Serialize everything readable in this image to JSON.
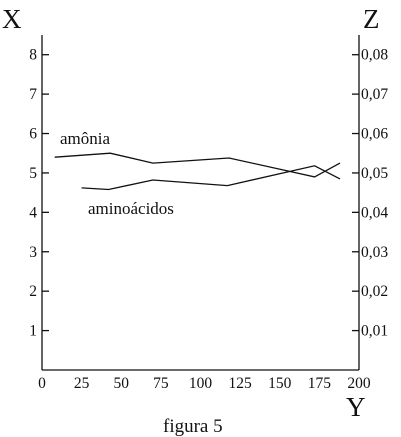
{
  "chart_data": {
    "type": "line",
    "caption": "figura 5",
    "x_axis": {
      "label": "Y",
      "range": [
        0,
        200
      ],
      "ticks": [
        0,
        25,
        50,
        75,
        100,
        125,
        150,
        175,
        200
      ],
      "tick_labels": [
        "0",
        "25",
        "50",
        "75",
        "100",
        "125",
        "150",
        "175",
        "200"
      ]
    },
    "y_left_axis": {
      "label": "X",
      "range": [
        0,
        8.5
      ],
      "ticks": [
        1,
        2,
        3,
        4,
        5,
        6,
        7,
        8
      ],
      "tick_labels": [
        "1",
        "2",
        "3",
        "4",
        "5",
        "6",
        "7",
        "8"
      ]
    },
    "y_right_axis": {
      "label": "Z",
      "range": [
        0,
        0.085
      ],
      "ticks": [
        0.01,
        0.02,
        0.03,
        0.04,
        0.05,
        0.06,
        0.07,
        0.08
      ],
      "tick_labels": [
        "0,01",
        "0,02",
        "0,03",
        "0,04",
        "0,05",
        "0,06",
        "0,07",
        "0,08"
      ]
    },
    "series": [
      {
        "name": "amônia",
        "axis": "left",
        "x": [
          8,
          43,
          70,
          118,
          172,
          188
        ],
        "y": [
          5.4,
          5.5,
          5.25,
          5.38,
          4.9,
          5.25
        ]
      },
      {
        "name": "aminoácidos",
        "axis": "left",
        "x": [
          25,
          42,
          70,
          117,
          172,
          188
        ],
        "y": [
          4.62,
          4.58,
          4.82,
          4.68,
          5.18,
          4.85
        ]
      }
    ],
    "grid": false,
    "legend": "inline labels"
  }
}
